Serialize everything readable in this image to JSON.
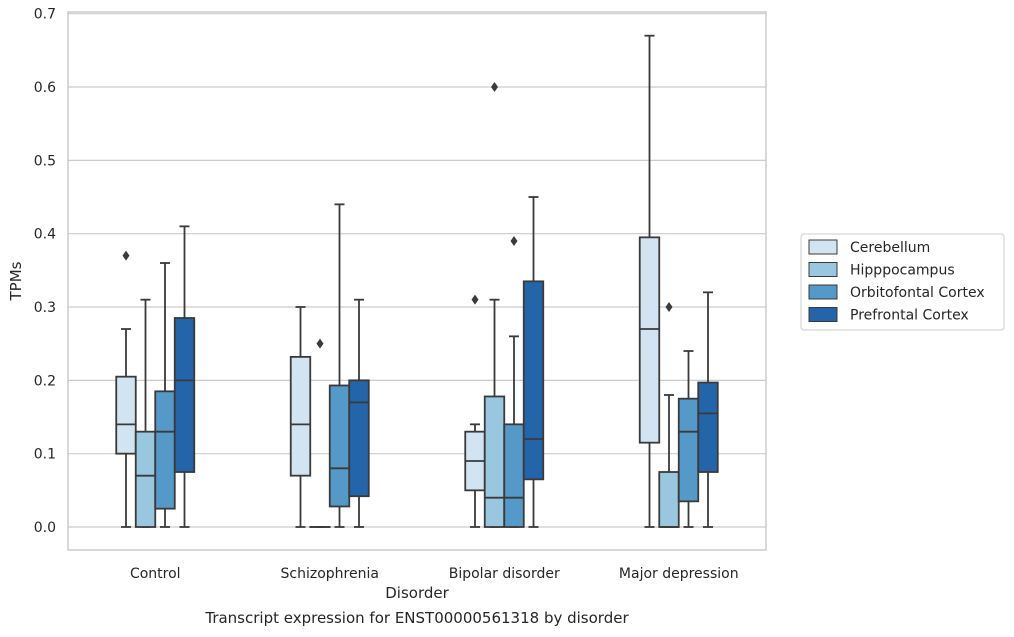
{
  "caption": "Transcript expression for ENST00000561318 by disorder",
  "chart_data": {
    "type": "box",
    "xlabel": "Disorder",
    "ylabel": "TPMs",
    "ylim": [
      -0.03,
      0.705
    ],
    "yticks": [
      0.0,
      0.1,
      0.2,
      0.3,
      0.4,
      0.5,
      0.6,
      0.7
    ],
    "ytick_labels": [
      "0.0",
      "0.1",
      "0.2",
      "0.3",
      "0.4",
      "0.5",
      "0.6",
      "0.7"
    ],
    "grid": "horizontal",
    "legend_position": "right",
    "categories": [
      "Control",
      "Schizophrenia",
      "Bipolar disorder",
      "Major depression"
    ],
    "series": [
      {
        "name": "Cerebellum",
        "color": "#d2e3f2",
        "boxes": [
          {
            "whislo": 0.0,
            "q1": 0.1,
            "med": 0.14,
            "q3": 0.205,
            "whishi": 0.27,
            "fliers": [
              0.37
            ]
          },
          {
            "whislo": 0.0,
            "q1": 0.07,
            "med": 0.14,
            "q3": 0.232,
            "whishi": 0.3,
            "fliers": []
          },
          {
            "whislo": 0.0,
            "q1": 0.05,
            "med": 0.09,
            "q3": 0.13,
            "whishi": 0.14,
            "fliers": [
              0.31
            ]
          },
          {
            "whislo": 0.0,
            "q1": 0.115,
            "med": 0.27,
            "q3": 0.395,
            "whishi": 0.67,
            "fliers": []
          }
        ]
      },
      {
        "name": "Hipppocampus",
        "color": "#9ac7e0",
        "boxes": [
          {
            "whislo": 0.0,
            "q1": 0.0,
            "med": 0.07,
            "q3": 0.13,
            "whishi": 0.31,
            "fliers": []
          },
          {
            "whislo": 0.0,
            "q1": 0.0,
            "med": 0.0,
            "q3": 0.0,
            "whishi": 0.0,
            "fliers": [
              0.25
            ]
          },
          {
            "whislo": 0.0,
            "q1": 0.0,
            "med": 0.04,
            "q3": 0.178,
            "whishi": 0.31,
            "fliers": [
              0.6
            ]
          },
          {
            "whislo": 0.0,
            "q1": 0.0,
            "med": 0.0,
            "q3": 0.075,
            "whishi": 0.18,
            "fliers": [
              0.3
            ]
          }
        ]
      },
      {
        "name": "Orbitofontal Cortex",
        "color": "#5599c8",
        "boxes": [
          {
            "whislo": 0.0,
            "q1": 0.025,
            "med": 0.13,
            "q3": 0.185,
            "whishi": 0.36,
            "fliers": []
          },
          {
            "whislo": 0.0,
            "q1": 0.028,
            "med": 0.08,
            "q3": 0.193,
            "whishi": 0.44,
            "fliers": []
          },
          {
            "whislo": 0.0,
            "q1": 0.0,
            "med": 0.04,
            "q3": 0.14,
            "whishi": 0.26,
            "fliers": [
              0.39
            ]
          },
          {
            "whislo": 0.0,
            "q1": 0.035,
            "med": 0.13,
            "q3": 0.175,
            "whishi": 0.24,
            "fliers": []
          }
        ]
      },
      {
        "name": "Prefrontal Cortex",
        "color": "#2464a8",
        "boxes": [
          {
            "whislo": 0.0,
            "q1": 0.075,
            "med": 0.2,
            "q3": 0.285,
            "whishi": 0.41,
            "fliers": []
          },
          {
            "whislo": 0.0,
            "q1": 0.042,
            "med": 0.17,
            "q3": 0.2,
            "whishi": 0.31,
            "fliers": []
          },
          {
            "whislo": 0.0,
            "q1": 0.065,
            "med": 0.12,
            "q3": 0.335,
            "whishi": 0.45,
            "fliers": []
          },
          {
            "whislo": 0.0,
            "q1": 0.075,
            "med": 0.155,
            "q3": 0.197,
            "whishi": 0.32,
            "fliers": []
          }
        ]
      }
    ]
  }
}
